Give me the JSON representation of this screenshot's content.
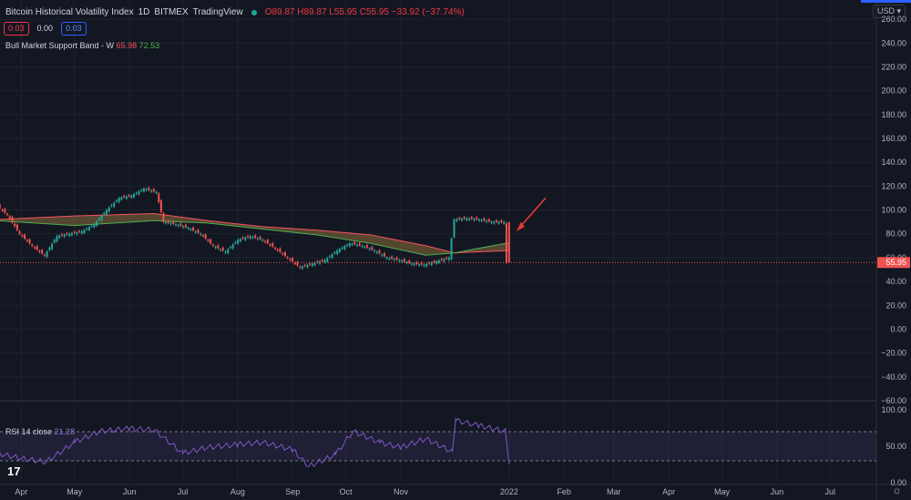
{
  "header": {
    "title": "Bitcoin Historical Volatility Index",
    "interval": "1D",
    "exchange": "BITMEX",
    "source": "TradingView",
    "ohlc": "O89.87 H89.87 L55.95 C55.95 −33.92 (−37.74%)"
  },
  "value_boxes": [
    "0.03",
    "0.00",
    "0.03"
  ],
  "indicator": {
    "name": "Bull Market Support Band - W",
    "v1": "65.98",
    "v2": "72.53"
  },
  "rsi": {
    "label": "RSI 14 close",
    "value": "21.28"
  },
  "currency": "USD ▾",
  "logo": "17",
  "last_price_label": "55.95",
  "colors": {
    "up": "#26a69a",
    "down": "#ef5350",
    "rsi": "#7e57c2",
    "band_upper": "#f7525f",
    "band_lower": "#4caf50",
    "arrow": "#e53935"
  },
  "chart_data": [
    {
      "type": "candlestick",
      "title": "Bitcoin Historical Volatility Index",
      "y_ticks": [
        "260.00",
        "240.00",
        "220.00",
        "200.00",
        "180.00",
        "160.00",
        "140.00",
        "120.00",
        "100.00",
        "80.00",
        "60.00",
        "40.00",
        "20.00",
        "0.00",
        "−20.00",
        "−40.00",
        "−60.00"
      ],
      "x_ticks": [
        "Apr",
        "May",
        "Jun",
        "Jul",
        "Aug",
        "Sep",
        "Oct",
        "Nov",
        "2022",
        "Feb",
        "Mar",
        "Apr",
        "May",
        "Jun",
        "Jul"
      ],
      "ylim": [
        -60,
        270
      ],
      "grid": true,
      "close_path": [
        {
          "date": "2021-03-18",
          "value": 105
        },
        {
          "date": "2021-03-25",
          "value": 96
        },
        {
          "date": "2021-04-01",
          "value": 80
        },
        {
          "date": "2021-04-08",
          "value": 70
        },
        {
          "date": "2021-04-15",
          "value": 62
        },
        {
          "date": "2021-04-22",
          "value": 78
        },
        {
          "date": "2021-04-29",
          "value": 80
        },
        {
          "date": "2021-05-06",
          "value": 82
        },
        {
          "date": "2021-05-13",
          "value": 88
        },
        {
          "date": "2021-05-20",
          "value": 100
        },
        {
          "date": "2021-05-27",
          "value": 110
        },
        {
          "date": "2021-06-03",
          "value": 112
        },
        {
          "date": "2021-06-10",
          "value": 118
        },
        {
          "date": "2021-06-17",
          "value": 115
        },
        {
          "date": "2021-06-21",
          "value": 90
        },
        {
          "date": "2021-06-28",
          "value": 88
        },
        {
          "date": "2021-07-05",
          "value": 85
        },
        {
          "date": "2021-07-12",
          "value": 80
        },
        {
          "date": "2021-07-19",
          "value": 70
        },
        {
          "date": "2021-07-26",
          "value": 65
        },
        {
          "date": "2021-08-02",
          "value": 75
        },
        {
          "date": "2021-08-09",
          "value": 78
        },
        {
          "date": "2021-08-16",
          "value": 75
        },
        {
          "date": "2021-08-23",
          "value": 68
        },
        {
          "date": "2021-08-30",
          "value": 60
        },
        {
          "date": "2021-09-06",
          "value": 52
        },
        {
          "date": "2021-09-13",
          "value": 55
        },
        {
          "date": "2021-09-20",
          "value": 58
        },
        {
          "date": "2021-09-27",
          "value": 66
        },
        {
          "date": "2021-10-04",
          "value": 72
        },
        {
          "date": "2021-10-11",
          "value": 70
        },
        {
          "date": "2021-10-18",
          "value": 66
        },
        {
          "date": "2021-10-25",
          "value": 60
        },
        {
          "date": "2021-11-01",
          "value": 58
        },
        {
          "date": "2021-11-08",
          "value": 55
        },
        {
          "date": "2021-11-15",
          "value": 54
        },
        {
          "date": "2021-11-22",
          "value": 57
        },
        {
          "date": "2021-11-29",
          "value": 60
        },
        {
          "date": "2021-12-02",
          "value": 92
        },
        {
          "date": "2021-12-09",
          "value": 93
        },
        {
          "date": "2021-12-16",
          "value": 92
        },
        {
          "date": "2021-12-23",
          "value": 90
        },
        {
          "date": "2021-12-30",
          "value": 89.87
        },
        {
          "date": "2022-01-01",
          "value": 55.95
        }
      ],
      "bmsb_upper": [
        {
          "date": "2021-03-18",
          "value": 92
        },
        {
          "date": "2021-05-01",
          "value": 95
        },
        {
          "date": "2021-06-15",
          "value": 97
        },
        {
          "date": "2021-07-15",
          "value": 91
        },
        {
          "date": "2021-08-15",
          "value": 86
        },
        {
          "date": "2021-09-15",
          "value": 83
        },
        {
          "date": "2021-10-15",
          "value": 79
        },
        {
          "date": "2021-11-15",
          "value": 70
        },
        {
          "date": "2021-12-01",
          "value": 64
        },
        {
          "date": "2022-01-01",
          "value": 65.98
        }
      ],
      "bmsb_lower": [
        {
          "date": "2021-03-18",
          "value": 91
        },
        {
          "date": "2021-05-01",
          "value": 87
        },
        {
          "date": "2021-06-15",
          "value": 91
        },
        {
          "date": "2021-07-15",
          "value": 89
        },
        {
          "date": "2021-08-15",
          "value": 84
        },
        {
          "date": "2021-09-15",
          "value": 79
        },
        {
          "date": "2021-10-15",
          "value": 72
        },
        {
          "date": "2021-11-15",
          "value": 62
        },
        {
          "date": "2021-12-01",
          "value": 64
        },
        {
          "date": "2022-01-01",
          "value": 72.53
        }
      ],
      "last_price": 55.95
    },
    {
      "type": "line",
      "title": "RSI 14 close",
      "y_ticks": [
        "100.00",
        "50.00",
        "0.00"
      ],
      "ylim": [
        0,
        105
      ],
      "bands": [
        30,
        70
      ],
      "series": [
        {
          "name": "RSI 14 close",
          "values": [
            {
              "date": "2021-03-18",
              "value": 40
            },
            {
              "date": "2021-04-01",
              "value": 33
            },
            {
              "date": "2021-04-15",
              "value": 28
            },
            {
              "date": "2021-05-01",
              "value": 55
            },
            {
              "date": "2021-05-15",
              "value": 70
            },
            {
              "date": "2021-06-01",
              "value": 74
            },
            {
              "date": "2021-06-15",
              "value": 72
            },
            {
              "date": "2021-07-01",
              "value": 40
            },
            {
              "date": "2021-07-15",
              "value": 48
            },
            {
              "date": "2021-08-01",
              "value": 52
            },
            {
              "date": "2021-08-15",
              "value": 55
            },
            {
              "date": "2021-09-01",
              "value": 45
            },
            {
              "date": "2021-09-10",
              "value": 22
            },
            {
              "date": "2021-09-25",
              "value": 38
            },
            {
              "date": "2021-10-05",
              "value": 70
            },
            {
              "date": "2021-10-20",
              "value": 55
            },
            {
              "date": "2021-11-01",
              "value": 48
            },
            {
              "date": "2021-11-15",
              "value": 60
            },
            {
              "date": "2021-11-30",
              "value": 42
            },
            {
              "date": "2021-12-02",
              "value": 85
            },
            {
              "date": "2021-12-15",
              "value": 78
            },
            {
              "date": "2021-12-30",
              "value": 70
            },
            {
              "date": "2022-01-01",
              "value": 21.28
            }
          ]
        }
      ]
    }
  ]
}
